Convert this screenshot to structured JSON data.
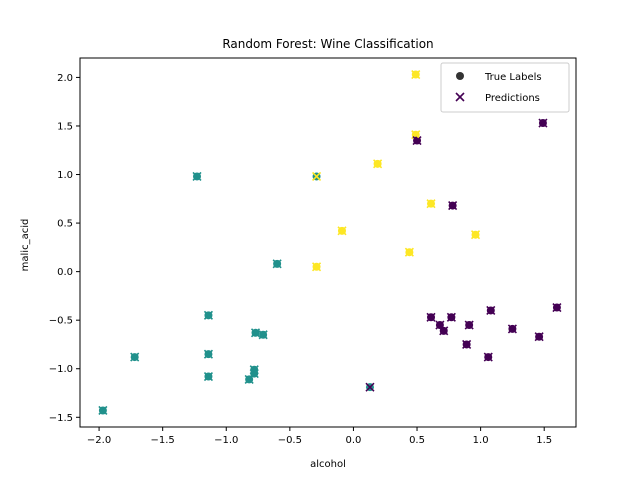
{
  "chart_data": {
    "type": "scatter",
    "title": "Random Forest: Wine Classification",
    "xlabel": "alcohol",
    "ylabel": "malic_acid",
    "xlim": [
      -2.15,
      1.75
    ],
    "ylim": [
      -1.6,
      2.2
    ],
    "xticks": [
      -2.0,
      -1.5,
      -1.0,
      -0.5,
      0.0,
      0.5,
      1.0,
      1.5
    ],
    "xtick_labels": [
      "−2.0",
      "−1.5",
      "−1.0",
      "−0.5",
      "0.0",
      "0.5",
      "1.0",
      "1.5"
    ],
    "yticks": [
      -1.5,
      -1.0,
      -0.5,
      0.0,
      0.5,
      1.0,
      1.5,
      2.0
    ],
    "ytick_labels": [
      "−1.5",
      "−1.0",
      "−0.5",
      "0.0",
      "0.5",
      "1.0",
      "1.5",
      "2.0"
    ],
    "grid": false,
    "legend": {
      "position": "top-right",
      "entries": [
        {
          "label": "True Labels",
          "marker": "circle"
        },
        {
          "label": "Predictions",
          "marker": "x"
        }
      ]
    },
    "class_colors": {
      "0": "#440154",
      "1": "#21918c",
      "2": "#fde725"
    },
    "points": [
      {
        "x": -1.97,
        "y": -1.43,
        "true": 1,
        "pred": 1
      },
      {
        "x": -1.72,
        "y": -0.88,
        "true": 1,
        "pred": 1
      },
      {
        "x": -1.23,
        "y": 0.98,
        "true": 1,
        "pred": 1
      },
      {
        "x": -1.14,
        "y": -0.45,
        "true": 1,
        "pred": 1
      },
      {
        "x": -1.14,
        "y": -0.85,
        "true": 1,
        "pred": 1
      },
      {
        "x": -1.14,
        "y": -1.08,
        "true": 1,
        "pred": 1
      },
      {
        "x": -0.82,
        "y": -1.11,
        "true": 1,
        "pred": 1
      },
      {
        "x": -0.78,
        "y": -1.05,
        "true": 1,
        "pred": 1
      },
      {
        "x": -0.78,
        "y": -1.01,
        "true": 1,
        "pred": 1
      },
      {
        "x": -0.77,
        "y": -0.63,
        "true": 1,
        "pred": 1
      },
      {
        "x": -0.71,
        "y": -0.65,
        "true": 1,
        "pred": 1
      },
      {
        "x": -0.6,
        "y": 0.08,
        "true": 1,
        "pred": 1
      },
      {
        "x": -0.29,
        "y": 0.98,
        "true": 1,
        "pred": 2
      },
      {
        "x": -0.29,
        "y": 0.05,
        "true": 2,
        "pred": 2
      },
      {
        "x": -0.09,
        "y": 0.42,
        "true": 2,
        "pred": 2
      },
      {
        "x": 0.13,
        "y": -1.19,
        "true": 1,
        "pred": 0
      },
      {
        "x": 0.19,
        "y": 1.11,
        "true": 2,
        "pred": 2
      },
      {
        "x": 0.44,
        "y": 0.2,
        "true": 2,
        "pred": 2
      },
      {
        "x": 0.49,
        "y": 2.03,
        "true": 2,
        "pred": 2
      },
      {
        "x": 0.49,
        "y": 1.41,
        "true": 2,
        "pred": 2
      },
      {
        "x": 0.5,
        "y": 1.35,
        "true": 0,
        "pred": 0
      },
      {
        "x": 0.61,
        "y": 0.7,
        "true": 2,
        "pred": 2
      },
      {
        "x": 0.61,
        "y": -0.47,
        "true": 0,
        "pred": 0
      },
      {
        "x": 0.68,
        "y": -0.55,
        "true": 0,
        "pred": 0
      },
      {
        "x": 0.71,
        "y": -0.61,
        "true": 0,
        "pred": 0
      },
      {
        "x": 0.77,
        "y": -0.47,
        "true": 0,
        "pred": 0
      },
      {
        "x": 0.78,
        "y": 0.68,
        "true": 0,
        "pred": 0
      },
      {
        "x": 0.89,
        "y": -0.75,
        "true": 0,
        "pred": 0
      },
      {
        "x": 0.91,
        "y": -0.55,
        "true": 0,
        "pred": 0
      },
      {
        "x": 0.96,
        "y": 0.38,
        "true": 2,
        "pred": 2
      },
      {
        "x": 1.06,
        "y": -0.88,
        "true": 0,
        "pred": 0
      },
      {
        "x": 1.08,
        "y": -0.4,
        "true": 0,
        "pred": 0
      },
      {
        "x": 1.25,
        "y": -0.59,
        "true": 0,
        "pred": 0
      },
      {
        "x": 1.46,
        "y": -0.67,
        "true": 0,
        "pred": 0
      },
      {
        "x": 1.49,
        "y": 1.53,
        "true": 0,
        "pred": 0
      },
      {
        "x": 1.6,
        "y": -0.37,
        "true": 0,
        "pred": 0
      }
    ]
  }
}
